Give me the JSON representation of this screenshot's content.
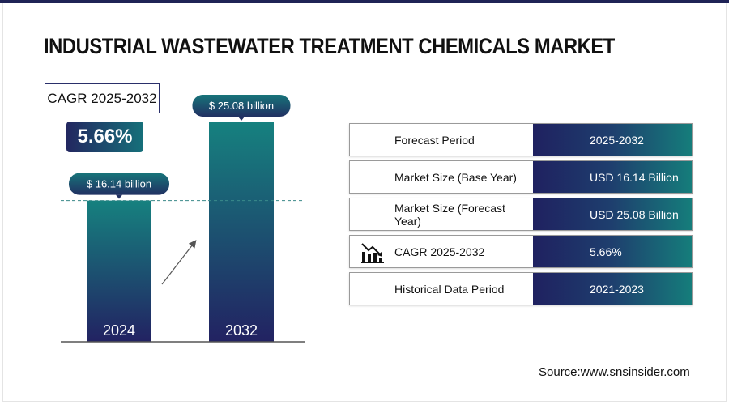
{
  "title": "INDUSTRIAL WASTEWATER TREATMENT CHEMICALS MARKET",
  "cagr": {
    "label": "CAGR 2025-2032",
    "value": "5.66%"
  },
  "chart_data": {
    "type": "bar",
    "categories": [
      "2024",
      "2032"
    ],
    "values": [
      16.14,
      25.08
    ],
    "data_labels": [
      "$ 16.14 billion",
      "$ 25.08 billion"
    ],
    "colors": {
      "top": "#16817f",
      "bottom": "#222262"
    }
  },
  "table": [
    {
      "label": "Forecast Period",
      "value": "2025-2032"
    },
    {
      "label": "Market Size (Base Year)",
      "value": "USD 16.14 Billion"
    },
    {
      "label": "Market Size (Forecast Year)",
      "value": "USD 25.08 Billion"
    },
    {
      "label": "CAGR 2025-2032",
      "value": "5.66%",
      "icon": "chart-decline-icon"
    },
    {
      "label": "Historical Data Period",
      "value": "2021-2023"
    }
  ],
  "source": "Source:www.snsinsider.com"
}
